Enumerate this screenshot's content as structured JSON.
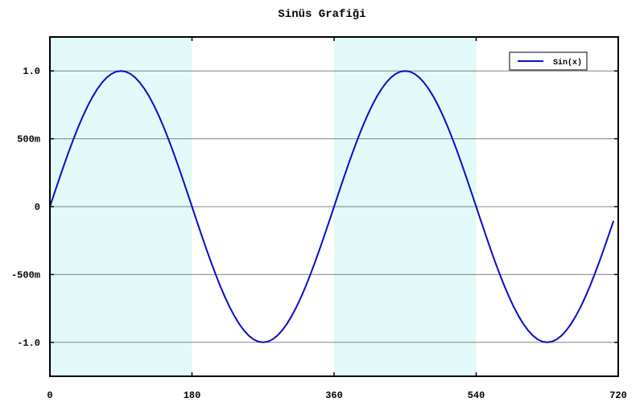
{
  "chart_data": {
    "type": "line",
    "title": "Sinüs Grafiği",
    "xlabel": "",
    "ylabel": "",
    "xlim": [
      0,
      720
    ],
    "ylim": [
      -1.25,
      1.25
    ],
    "x_ticks": [
      {
        "value": 0,
        "label": "0"
      },
      {
        "value": 180,
        "label": "180"
      },
      {
        "value": 360,
        "label": "360"
      },
      {
        "value": 540,
        "label": "540"
      },
      {
        "value": 720,
        "label": "720"
      }
    ],
    "y_ticks": [
      {
        "value": 1.0,
        "label": "1.0"
      },
      {
        "value": 0.5,
        "label": "500m"
      },
      {
        "value": 0,
        "label": "0"
      },
      {
        "value": -0.5,
        "label": "-500m"
      },
      {
        "value": -1.0,
        "label": "-1.0"
      }
    ],
    "horizontal_gridlines": true,
    "shaded_bands": [
      {
        "x_start": 0,
        "x_end": 180
      },
      {
        "x_start": 360,
        "x_end": 540
      }
    ],
    "legend_position": "top-right",
    "series": [
      {
        "name": "Sin(x)",
        "x_start": 0,
        "x_end": 714,
        "x_step": 6,
        "function": "sin(x degrees)"
      }
    ],
    "colors": {
      "line": "#0b0bc8",
      "band": "#e2fafa",
      "grid": "#808080",
      "frame": "#000000"
    }
  }
}
